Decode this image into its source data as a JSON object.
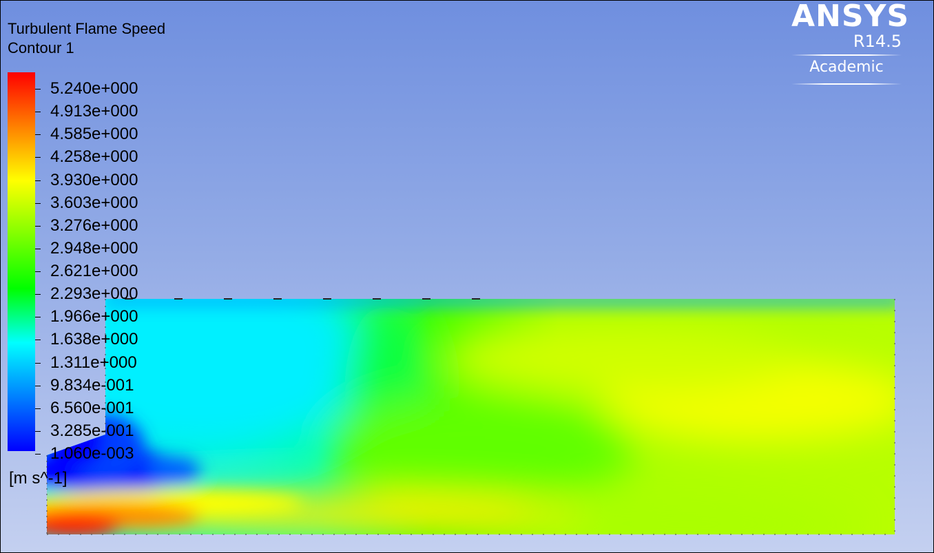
{
  "chart_data": {
    "type": "heatmap",
    "title": "Turbulent Flame Speed",
    "subtitle": "Contour 1",
    "units": "[m s^-1]",
    "colorbar": {
      "min": 0.00106,
      "max": 5.24,
      "tick_labels": [
        "5.240e+000",
        "4.913e+000",
        "4.585e+000",
        "4.258e+000",
        "3.930e+000",
        "3.603e+000",
        "3.276e+000",
        "2.948e+000",
        "2.621e+000",
        "2.293e+000",
        "1.966e+000",
        "1.638e+000",
        "1.311e+000",
        "9.834e-001",
        "6.560e-001",
        "3.285e-001",
        "1.060e-003"
      ],
      "colors": [
        "#ff0000",
        "#ff8000",
        "#ffff00",
        "#80ff00",
        "#00ff00",
        "#00ffff",
        "#0080ff",
        "#0000ff"
      ]
    }
  },
  "logo": {
    "name": "ANSYS",
    "version": "R14.5",
    "edition": "Academic"
  }
}
